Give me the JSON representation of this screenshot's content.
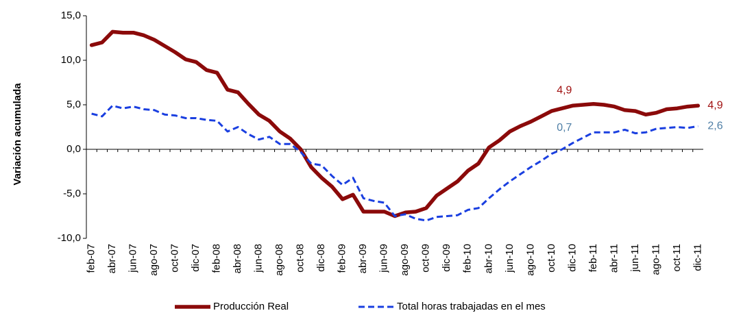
{
  "chart_data": {
    "type": "line",
    "y_label": "Variación acumulada",
    "categories": [
      "feb-07",
      null,
      "abr-07",
      null,
      "jun-07",
      null,
      "ago-07",
      null,
      "oct-07",
      null,
      "dic-07",
      null,
      "feb-08",
      null,
      "abr-08",
      null,
      "jun-08",
      null,
      "ago-08",
      null,
      "oct-08",
      null,
      "dic-08",
      null,
      "feb-09",
      null,
      "abr-09",
      null,
      "jun-09",
      null,
      "ago-09",
      null,
      "oct-09",
      null,
      "dic-09",
      null,
      "feb-10",
      null,
      "abr-10",
      null,
      "jun-10",
      null,
      "ago-10",
      null,
      "oct-10",
      null,
      "dic-10",
      null,
      "feb-11",
      null,
      "abr-11",
      null,
      "jun-11",
      null,
      "ago-11",
      null,
      "oct-11",
      null,
      "dic-11"
    ],
    "series": [
      {
        "name": "Producción Real",
        "color": "#8b0a0a",
        "values": [
          11.7,
          12.0,
          13.2,
          13.1,
          13.1,
          12.8,
          12.3,
          11.6,
          10.9,
          10.1,
          9.8,
          8.9,
          8.6,
          6.7,
          6.4,
          5.1,
          3.9,
          3.2,
          2.0,
          1.2,
          0.0,
          -2.0,
          -3.2,
          -4.2,
          -5.6,
          -5.1,
          -7.0,
          -7.0,
          -7.0,
          -7.5,
          -7.1,
          -7.0,
          -6.6,
          -5.2,
          -4.4,
          -3.6,
          -2.4,
          -1.6,
          0.2,
          1.0,
          2.0,
          2.6,
          3.1,
          3.7,
          4.3,
          4.6,
          4.9,
          5.0,
          5.1,
          5.0,
          4.8,
          4.4,
          4.3,
          3.9,
          4.1,
          4.5,
          4.6,
          4.8,
          4.9
        ],
        "value_labels": [
          null,
          null,
          null,
          null,
          null,
          null,
          null,
          null,
          null,
          null,
          null,
          null,
          null,
          null,
          null,
          null,
          null,
          null,
          null,
          null,
          null,
          null,
          null,
          null,
          null,
          null,
          null,
          null,
          null,
          null,
          null,
          null,
          null,
          null,
          null,
          null,
          null,
          null,
          null,
          null,
          null,
          null,
          null,
          null,
          null,
          null,
          "4,9",
          null,
          null,
          null,
          null,
          null,
          null,
          null,
          null,
          null,
          null,
          null,
          "4,9"
        ],
        "label_color": "#a01010"
      },
      {
        "name": "Total horas trabajadas en el mes",
        "color": "#1a3fe0",
        "dashed": true,
        "values": [
          4.0,
          3.7,
          4.9,
          4.6,
          4.8,
          4.5,
          4.4,
          3.9,
          3.8,
          3.5,
          3.5,
          3.3,
          3.2,
          2.0,
          2.5,
          1.7,
          1.1,
          1.4,
          0.6,
          0.6,
          -0.3,
          -1.6,
          -1.8,
          -3.0,
          -4.0,
          -3.2,
          -5.5,
          -5.8,
          -6.0,
          -7.5,
          -7.3,
          -7.8,
          -8.0,
          -7.6,
          -7.5,
          -7.4,
          -6.8,
          -6.6,
          -5.5,
          -4.5,
          -3.6,
          -2.8,
          -2.0,
          -1.3,
          -0.5,
          0.0,
          0.7,
          1.3,
          1.9,
          1.9,
          1.9,
          2.2,
          1.8,
          1.9,
          2.3,
          2.4,
          2.5,
          2.4,
          2.6
        ],
        "value_labels": [
          null,
          null,
          null,
          null,
          null,
          null,
          null,
          null,
          null,
          null,
          null,
          null,
          null,
          null,
          null,
          null,
          null,
          null,
          null,
          null,
          null,
          null,
          null,
          null,
          null,
          null,
          null,
          null,
          null,
          null,
          null,
          null,
          null,
          null,
          null,
          null,
          null,
          null,
          null,
          null,
          null,
          null,
          null,
          null,
          null,
          null,
          "0,7",
          null,
          null,
          null,
          null,
          null,
          null,
          null,
          null,
          null,
          null,
          null,
          "2,6"
        ],
        "label_color": "#4f7fa6"
      }
    ],
    "ylim": [
      -10,
      15
    ],
    "yticks": [
      {
        "value": -10,
        "label": "-10,0"
      },
      {
        "value": -5,
        "label": "-5,0"
      },
      {
        "value": 0,
        "label": "0,0"
      },
      {
        "value": 5,
        "label": "5,0"
      },
      {
        "value": 10,
        "label": "10,0"
      },
      {
        "value": 15,
        "label": "15,0"
      }
    ],
    "grid": false,
    "legend": "bottom"
  }
}
